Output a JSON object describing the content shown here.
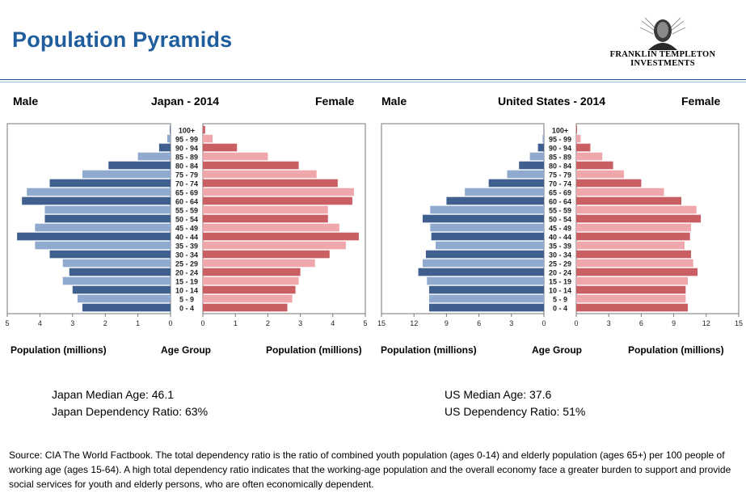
{
  "page": {
    "title": "Population Pyramids",
    "logo_text": [
      "FRANKLIN TEMPLETON",
      "INVESTMENTS"
    ],
    "source_note": "Source: CIA The World Factbook. The total dependency ratio is the ratio of combined youth population (ages 0-14) and elderly population (ages 65+) per 100 people of working age (ages 15-64). A high total dependency ratio indicates that the working-age population and the overall economy face a greater burden to support and provide social services for youth and elderly persons, who are often economically dependent."
  },
  "japan": {
    "male_label": "Male",
    "female_label": "Female",
    "xlabel_left": "Population (millions)",
    "xlabel_center": "Age Group",
    "xlabel_right": "Population (millions)",
    "median_age": "Japan Median Age: 46.1",
    "dependency": "Japan Dependency Ratio: 63%"
  },
  "us": {
    "male_label": "Male",
    "female_label": "Female",
    "xlabel_left": "Population (millions)",
    "xlabel_center": "Age Group",
    "xlabel_right": "Population (millions)",
    "median_age": "US Median Age: 37.6",
    "dependency": "US Dependency Ratio: 51%"
  },
  "colors": {
    "title": "#1f5d9c",
    "male_dark": "#3f5f8f",
    "male_light": "#8fa9cf",
    "female_dark": "#c95e63",
    "female_light": "#f0a7ab"
  },
  "chart_data": [
    {
      "type": "bar",
      "title": "Japan - 2014",
      "categories": [
        "0 - 4",
        "5 - 9",
        "10 - 14",
        "15 - 19",
        "20 - 24",
        "25 - 29",
        "30 - 34",
        "35 - 39",
        "40 - 44",
        "45 - 49",
        "50 - 54",
        "55 - 59",
        "60 - 64",
        "65 - 69",
        "70 - 74",
        "75 - 79",
        "80 - 84",
        "85 - 89",
        "90 - 94",
        "95 - 99",
        "100+"
      ],
      "series": [
        {
          "name": "Male",
          "values": [
            2.7,
            2.85,
            3.0,
            3.3,
            3.1,
            3.3,
            3.7,
            4.15,
            4.7,
            4.15,
            3.85,
            3.85,
            4.55,
            4.4,
            3.7,
            2.7,
            1.9,
            1.0,
            0.35,
            0.1,
            0.02
          ]
        },
        {
          "name": "Female",
          "values": [
            2.6,
            2.75,
            2.85,
            2.95,
            3.0,
            3.45,
            3.9,
            4.4,
            4.8,
            4.2,
            3.85,
            3.85,
            4.6,
            4.65,
            4.15,
            3.5,
            2.95,
            2.0,
            1.05,
            0.3,
            0.07
          ]
        }
      ],
      "xlim_male": [
        5,
        0
      ],
      "xlim_female": [
        0,
        5
      ],
      "xticks": [
        5,
        4,
        3,
        2,
        1,
        0
      ]
    },
    {
      "type": "bar",
      "title": "United States - 2014",
      "categories": [
        "0 - 4",
        "5 - 9",
        "10 - 14",
        "15 - 19",
        "20 - 24",
        "25 - 29",
        "30 - 34",
        "35 - 39",
        "40 - 44",
        "45 - 49",
        "50 - 54",
        "55 - 59",
        "60 - 64",
        "65 - 69",
        "70 - 74",
        "75 - 79",
        "80 - 84",
        "85 - 89",
        "90 - 94",
        "95 - 99",
        "100+"
      ],
      "series": [
        {
          "name": "Male",
          "values": [
            10.6,
            10.6,
            10.6,
            10.8,
            11.6,
            11.2,
            10.9,
            10.0,
            10.4,
            10.5,
            11.2,
            10.5,
            9.0,
            7.3,
            5.1,
            3.4,
            2.3,
            1.3,
            0.55,
            0.12,
            0.02
          ]
        },
        {
          "name": "Female",
          "values": [
            10.3,
            10.1,
            10.1,
            10.3,
            11.2,
            10.8,
            10.6,
            10.0,
            10.5,
            10.6,
            11.5,
            11.1,
            9.7,
            8.1,
            6.0,
            4.4,
            3.4,
            2.4,
            1.3,
            0.4,
            0.07
          ]
        }
      ],
      "xlim_male": [
        15,
        0
      ],
      "xlim_female": [
        0,
        15
      ],
      "xticks": [
        15,
        12,
        9,
        6,
        3,
        0
      ]
    }
  ]
}
